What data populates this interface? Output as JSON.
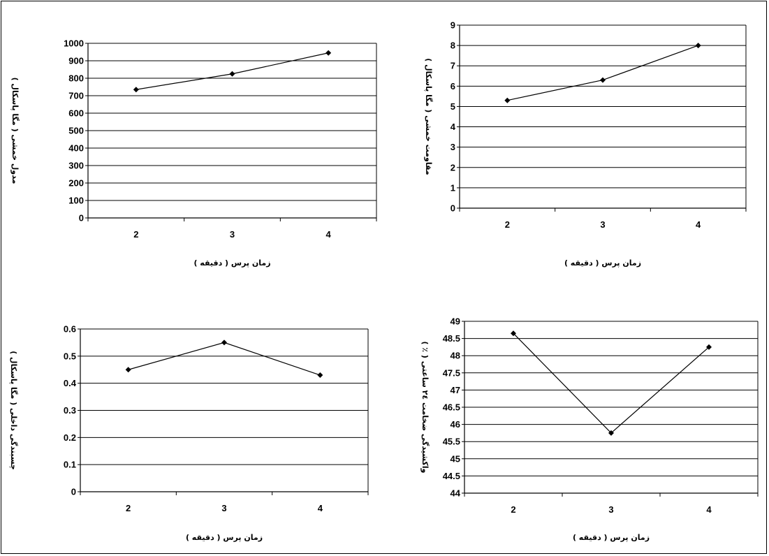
{
  "chart_data": [
    {
      "type": "line",
      "categories": [
        "2",
        "3",
        "4"
      ],
      "series": [
        {
          "values": [
            735,
            825,
            945
          ]
        }
      ],
      "xlabel": "زمان پرس ( دقیقه )",
      "ylabel": "مدول خمشی ( مگا پاسکال )",
      "ylim": [
        0,
        1000
      ],
      "yticks": [
        "0",
        "100",
        "200",
        "300",
        "400",
        "500",
        "600",
        "700",
        "800",
        "900",
        "1000"
      ],
      "grid": true,
      "color": "#000000"
    },
    {
      "type": "line",
      "categories": [
        "2",
        "3",
        "4"
      ],
      "series": [
        {
          "values": [
            5.3,
            6.3,
            8.0
          ]
        }
      ],
      "xlabel": "زمان پرس ( دقیقه )",
      "ylabel": "مقاومت خمشی ( مگا پاسکال )",
      "ylim": [
        0,
        9
      ],
      "yticks": [
        "0",
        "1",
        "2",
        "3",
        "4",
        "5",
        "6",
        "7",
        "8",
        "9"
      ],
      "grid": true,
      "color": "#000000"
    },
    {
      "type": "line",
      "categories": [
        "2",
        "3",
        "4"
      ],
      "series": [
        {
          "values": [
            0.45,
            0.55,
            0.43
          ]
        }
      ],
      "xlabel": "زمان پرس ( دقیقه )",
      "ylabel": "چسبندگی داخلی ( مگا پاسکال )",
      "ylim": [
        0,
        0.6
      ],
      "yticks": [
        "0",
        "0.1",
        "0.2",
        "0.3",
        "0.4",
        "0.5",
        "0.6"
      ],
      "grid": true,
      "color": "#000000"
    },
    {
      "type": "line",
      "categories": [
        "2",
        "3",
        "4"
      ],
      "series": [
        {
          "values": [
            48.65,
            45.75,
            48.25
          ]
        }
      ],
      "xlabel": "زمان پرس ( دقیقه )",
      "ylabel": "واکشیدگی ضخامت ٢٤ ساعتی ( ٪ )",
      "ylim": [
        44,
        49
      ],
      "yticks": [
        "44",
        "44.5",
        "45",
        "45.5",
        "46",
        "46.5",
        "47",
        "47.5",
        "48",
        "48.5",
        "49"
      ],
      "grid": true,
      "color": "#000000"
    }
  ]
}
